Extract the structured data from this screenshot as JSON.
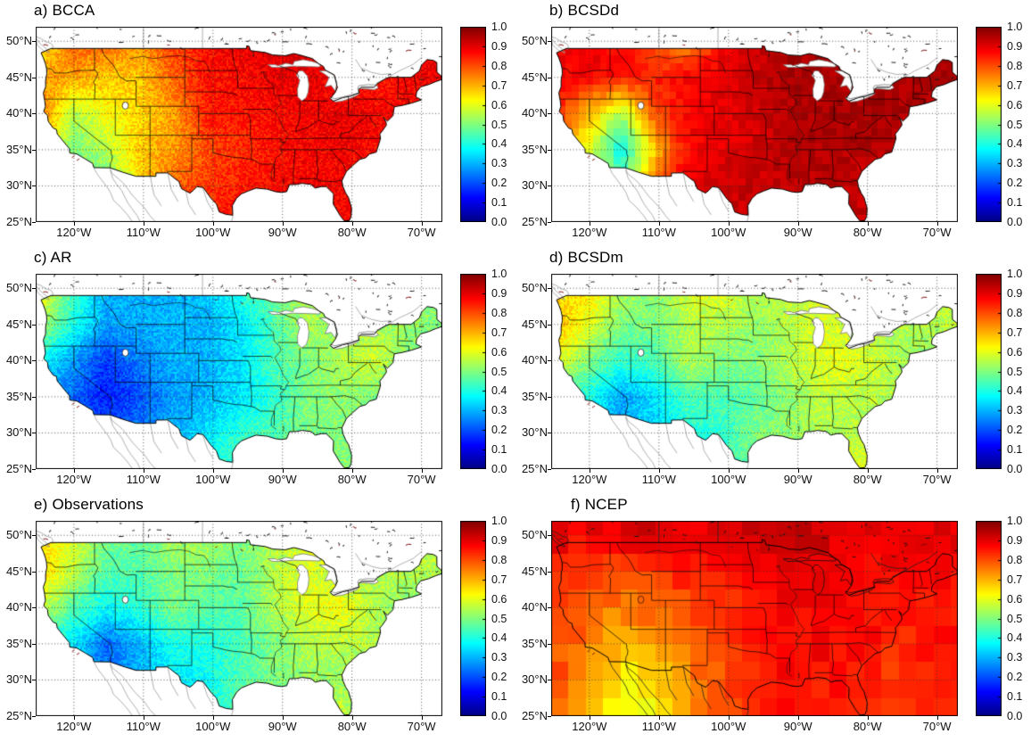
{
  "figure": {
    "background": "#ffffff",
    "kind": "6-panel correlation skill maps over the continental United States"
  },
  "axes": {
    "x_tick_labels": [
      "120°W",
      "110°W",
      "100°W",
      "90°W",
      "80°W",
      "70°W"
    ],
    "x_tick_lons": [
      -120,
      -110,
      -100,
      -90,
      -80,
      -70
    ],
    "y_tick_labels": [
      "50°N",
      "45°N",
      "40°N",
      "35°N",
      "30°N",
      "25°N"
    ],
    "y_tick_lats": [
      50,
      45,
      40,
      35,
      30,
      25
    ]
  },
  "colorbar": {
    "tick_labels": [
      "1.0",
      "0.9",
      "0.8",
      "0.7",
      "0.6",
      "0.5",
      "0.4",
      "0.3",
      "0.2",
      "0.1",
      "0.0"
    ],
    "tick_values": [
      1.0,
      0.9,
      0.8,
      0.7,
      0.6,
      0.5,
      0.4,
      0.3,
      0.2,
      0.1,
      0.0
    ],
    "min": 0.0,
    "max": 1.0,
    "colormap": "jet"
  },
  "chart_data": [
    {
      "id": "a",
      "title": "a) BCCA",
      "type": "heatmap",
      "colormap": "jet",
      "value_range": [
        0,
        1
      ],
      "lon_range": [
        -125.5,
        -67
      ],
      "lat_range": [
        25,
        52
      ],
      "mask": "conus",
      "cell_deg": 0,
      "speckle": 0.09,
      "grid_lons": [
        -125,
        -120.17,
        -115.33,
        -110.5,
        -105.67,
        -100.83,
        -96,
        -91.17,
        -86.33,
        -81.5,
        -76.67,
        -71.83,
        -67
      ],
      "grid_lats": [
        25,
        30,
        35,
        40,
        45,
        50
      ],
      "values": [
        [
          0.8,
          0.75,
          0.6,
          0.7,
          0.8,
          0.85,
          0.87,
          0.87,
          0.87,
          0.88,
          0.87,
          0.87,
          0.87
        ],
        [
          0.6,
          0.5,
          0.48,
          0.65,
          0.78,
          0.82,
          0.85,
          0.87,
          0.88,
          0.88,
          0.87,
          0.87,
          0.87
        ],
        [
          0.7,
          0.5,
          0.55,
          0.68,
          0.72,
          0.8,
          0.83,
          0.86,
          0.88,
          0.88,
          0.87,
          0.87,
          0.87
        ],
        [
          0.78,
          0.55,
          0.62,
          0.66,
          0.72,
          0.85,
          0.86,
          0.87,
          0.88,
          0.9,
          0.88,
          0.87,
          0.87
        ],
        [
          0.72,
          0.72,
          0.68,
          0.68,
          0.78,
          0.86,
          0.87,
          0.9,
          0.9,
          0.88,
          0.85,
          0.88,
          0.9
        ],
        [
          0.62,
          0.78,
          0.78,
          0.72,
          0.82,
          0.87,
          0.9,
          0.9,
          0.9,
          0.88,
          0.85,
          0.88,
          0.9
        ]
      ]
    },
    {
      "id": "b",
      "title": "b) BCSDd",
      "type": "heatmap",
      "colormap": "jet",
      "value_range": [
        0,
        1
      ],
      "lon_range": [
        -125.5,
        -67
      ],
      "lat_range": [
        25,
        52
      ],
      "mask": "conus",
      "cell_deg": 1,
      "speckle": 0.05,
      "grid_lons": [
        -125,
        -120.17,
        -115.33,
        -110.5,
        -105.67,
        -100.83,
        -96,
        -91.17,
        -86.33,
        -81.5,
        -76.67,
        -71.83,
        -67
      ],
      "grid_lats": [
        25,
        30,
        35,
        40,
        45,
        50
      ],
      "values": [
        [
          0.85,
          0.82,
          0.8,
          0.88,
          0.9,
          0.93,
          0.93,
          0.93,
          0.93,
          0.93,
          0.92,
          0.92,
          0.92
        ],
        [
          0.8,
          0.72,
          0.45,
          0.8,
          0.9,
          0.93,
          0.93,
          0.93,
          0.95,
          0.93,
          0.92,
          0.92,
          0.92
        ],
        [
          0.72,
          0.6,
          0.38,
          0.68,
          0.88,
          0.9,
          0.92,
          0.95,
          0.95,
          0.95,
          0.95,
          0.93,
          0.93
        ],
        [
          0.85,
          0.68,
          0.55,
          0.8,
          0.88,
          0.9,
          0.92,
          0.95,
          0.96,
          0.96,
          0.96,
          0.95,
          0.95
        ],
        [
          0.88,
          0.88,
          0.85,
          0.85,
          0.88,
          0.9,
          0.93,
          0.96,
          0.96,
          0.96,
          0.96,
          0.96,
          0.96
        ],
        [
          0.88,
          0.9,
          0.88,
          0.78,
          0.72,
          0.88,
          0.93,
          0.96,
          0.96,
          0.95,
          0.93,
          0.95,
          0.95
        ]
      ]
    },
    {
      "id": "c",
      "title": "c) AR",
      "type": "heatmap",
      "colormap": "jet",
      "value_range": [
        0,
        1
      ],
      "lon_range": [
        -125.5,
        -67
      ],
      "lat_range": [
        25,
        52
      ],
      "mask": "conus",
      "cell_deg": 0,
      "speckle": 0.09,
      "grid_lons": [
        -125,
        -120.17,
        -115.33,
        -110.5,
        -105.67,
        -100.83,
        -96,
        -91.17,
        -86.33,
        -81.5,
        -76.67,
        -71.83,
        -67
      ],
      "grid_lats": [
        25,
        30,
        35,
        40,
        45,
        50
      ],
      "values": [
        [
          0.3,
          0.3,
          0.3,
          0.3,
          0.35,
          0.4,
          0.45,
          0.45,
          0.45,
          0.52,
          0.5,
          0.45,
          0.45
        ],
        [
          0.28,
          0.25,
          0.2,
          0.25,
          0.3,
          0.35,
          0.42,
          0.45,
          0.5,
          0.5,
          0.5,
          0.45,
          0.45
        ],
        [
          0.32,
          0.22,
          0.15,
          0.2,
          0.28,
          0.3,
          0.35,
          0.42,
          0.5,
          0.52,
          0.5,
          0.48,
          0.45
        ],
        [
          0.38,
          0.28,
          0.18,
          0.25,
          0.3,
          0.3,
          0.35,
          0.45,
          0.5,
          0.55,
          0.58,
          0.5,
          0.48
        ],
        [
          0.55,
          0.4,
          0.28,
          0.3,
          0.3,
          0.3,
          0.35,
          0.45,
          0.55,
          0.5,
          0.55,
          0.52,
          0.5
        ],
        [
          0.65,
          0.45,
          0.3,
          0.3,
          0.3,
          0.32,
          0.42,
          0.5,
          0.55,
          0.5,
          0.5,
          0.52,
          0.52
        ]
      ]
    },
    {
      "id": "d",
      "title": "d) BCSDm",
      "type": "heatmap",
      "colormap": "jet",
      "value_range": [
        0,
        1
      ],
      "lon_range": [
        -125.5,
        -67
      ],
      "lat_range": [
        25,
        52
      ],
      "mask": "conus",
      "cell_deg": 0,
      "speckle": 0.09,
      "grid_lons": [
        -125,
        -120.17,
        -115.33,
        -110.5,
        -105.67,
        -100.83,
        -96,
        -91.17,
        -86.33,
        -81.5,
        -76.67,
        -71.83,
        -67
      ],
      "grid_lats": [
        25,
        30,
        35,
        40,
        45,
        50
      ],
      "values": [
        [
          0.42,
          0.4,
          0.38,
          0.35,
          0.4,
          0.45,
          0.5,
          0.5,
          0.52,
          0.62,
          0.52,
          0.5,
          0.5
        ],
        [
          0.42,
          0.36,
          0.3,
          0.33,
          0.4,
          0.42,
          0.5,
          0.52,
          0.55,
          0.55,
          0.52,
          0.5,
          0.5
        ],
        [
          0.46,
          0.4,
          0.28,
          0.35,
          0.45,
          0.45,
          0.47,
          0.52,
          0.56,
          0.56,
          0.55,
          0.52,
          0.5
        ],
        [
          0.62,
          0.5,
          0.42,
          0.45,
          0.55,
          0.5,
          0.5,
          0.55,
          0.6,
          0.6,
          0.55,
          0.52,
          0.52
        ],
        [
          0.7,
          0.6,
          0.5,
          0.5,
          0.55,
          0.55,
          0.52,
          0.56,
          0.6,
          0.55,
          0.55,
          0.55,
          0.56
        ],
        [
          0.65,
          0.66,
          0.55,
          0.5,
          0.6,
          0.6,
          0.55,
          0.56,
          0.6,
          0.55,
          0.52,
          0.55,
          0.6
        ]
      ]
    },
    {
      "id": "e",
      "title": "e) Observations",
      "type": "heatmap",
      "colormap": "jet",
      "value_range": [
        0,
        1
      ],
      "lon_range": [
        -125.5,
        -67
      ],
      "lat_range": [
        25,
        52
      ],
      "mask": "conus",
      "cell_deg": 0,
      "speckle": 0.09,
      "grid_lons": [
        -125,
        -120.17,
        -115.33,
        -110.5,
        -105.67,
        -100.83,
        -96,
        -91.17,
        -86.33,
        -81.5,
        -76.67,
        -71.83,
        -67
      ],
      "grid_lats": [
        25,
        30,
        35,
        40,
        45,
        50
      ],
      "values": [
        [
          0.38,
          0.36,
          0.34,
          0.3,
          0.36,
          0.4,
          0.46,
          0.5,
          0.5,
          0.58,
          0.5,
          0.46,
          0.46
        ],
        [
          0.38,
          0.32,
          0.25,
          0.3,
          0.36,
          0.38,
          0.46,
          0.5,
          0.52,
          0.52,
          0.5,
          0.46,
          0.46
        ],
        [
          0.42,
          0.36,
          0.22,
          0.3,
          0.4,
          0.4,
          0.44,
          0.5,
          0.55,
          0.56,
          0.55,
          0.5,
          0.5
        ],
        [
          0.58,
          0.46,
          0.38,
          0.42,
          0.5,
          0.46,
          0.46,
          0.55,
          0.6,
          0.62,
          0.55,
          0.5,
          0.5
        ],
        [
          0.68,
          0.56,
          0.46,
          0.46,
          0.5,
          0.5,
          0.48,
          0.55,
          0.6,
          0.55,
          0.55,
          0.55,
          0.55
        ],
        [
          0.65,
          0.6,
          0.5,
          0.46,
          0.55,
          0.55,
          0.5,
          0.55,
          0.6,
          0.55,
          0.5,
          0.55,
          0.6
        ]
      ]
    },
    {
      "id": "f",
      "title": "f) NCEP",
      "type": "heatmap",
      "colormap": "jet",
      "value_range": [
        0,
        1
      ],
      "lon_range": [
        -125.5,
        -67
      ],
      "lat_range": [
        25,
        52
      ],
      "mask": "none",
      "cell_deg": 2.5,
      "speckle": 0.05,
      "grid_lons": [
        -125,
        -120.17,
        -115.33,
        -110.5,
        -105.67,
        -100.83,
        -96,
        -91.17,
        -86.33,
        -81.5,
        -76.67,
        -71.83,
        -67
      ],
      "grid_lats": [
        25,
        30,
        35,
        40,
        45,
        50
      ],
      "values": [
        [
          0.78,
          0.72,
          0.62,
          0.6,
          0.72,
          0.8,
          0.85,
          0.85,
          0.85,
          0.85,
          0.8,
          0.85,
          0.85
        ],
        [
          0.8,
          0.74,
          0.62,
          0.66,
          0.75,
          0.8,
          0.85,
          0.88,
          0.86,
          0.85,
          0.82,
          0.85,
          0.85
        ],
        [
          0.8,
          0.76,
          0.7,
          0.73,
          0.78,
          0.8,
          0.85,
          0.88,
          0.88,
          0.86,
          0.85,
          0.85,
          0.86
        ],
        [
          0.82,
          0.78,
          0.75,
          0.78,
          0.8,
          0.82,
          0.85,
          0.88,
          0.88,
          0.88,
          0.85,
          0.85,
          0.86
        ],
        [
          0.84,
          0.8,
          0.8,
          0.82,
          0.85,
          0.85,
          0.88,
          0.9,
          0.9,
          0.88,
          0.88,
          0.88,
          0.88
        ],
        [
          0.9,
          0.88,
          0.9,
          0.92,
          0.9,
          0.9,
          0.92,
          0.92,
          0.92,
          0.9,
          0.9,
          0.9,
          0.9
        ]
      ]
    }
  ]
}
